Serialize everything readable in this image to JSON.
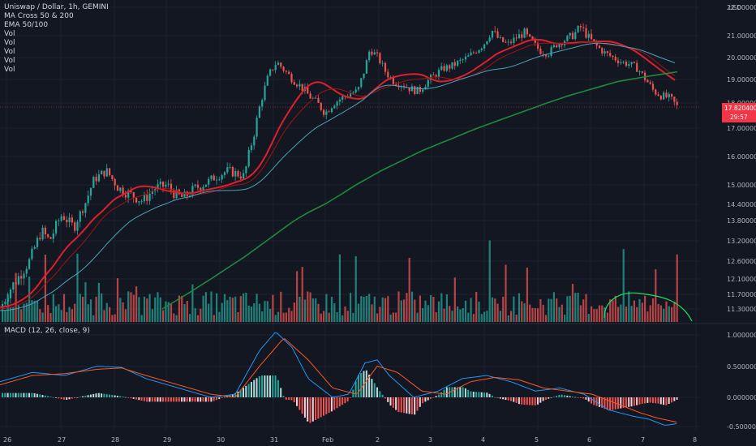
{
  "header": {
    "title": "Uniswap / Dollar, 1h, GEMINI",
    "indicators": [
      "MA Cross 50 & 200",
      "EMA 50/100",
      "Vol",
      "Vol",
      "Vol",
      "Vol",
      "Vol"
    ],
    "macd_label": "MACD (12, 26, close, 9)"
  },
  "price_badge": {
    "value": "17.820400",
    "countdown": "29:57",
    "color": "#f23645"
  },
  "colors": {
    "background": "#131722",
    "up": "#26a69a",
    "down": "#ef5350",
    "ma50": "#a31212",
    "ema50": "#e01f2c",
    "ema100": "#4aa3b8",
    "ma200": "#1e8a3c",
    "macd": "#2196f3",
    "signal": "#ff5722",
    "annotation": "#19e35a"
  },
  "chart_data": {
    "type": "candlestick",
    "symbol": "Uniswap / Dollar",
    "interval": "1h",
    "exchange": "GEMINI",
    "unit": "USD",
    "price_axis_ticks": [
      "22.000000",
      "21.000000",
      "20.000000",
      "19.000000",
      "18.000000",
      "17.000000",
      "16.000000",
      "15.000000",
      "14.400000",
      "13.800000",
      "13.200000",
      "12.600000",
      "12.100000",
      "11.700000",
      "11.300000"
    ],
    "x_axis_labels": [
      "26",
      "27",
      "28",
      "29",
      "30",
      "31",
      "Feb",
      "2",
      "3",
      "4",
      "5",
      "6",
      "7",
      "8"
    ],
    "price_anchors": [
      [
        0,
        11.35
      ],
      [
        10,
        11.8
      ],
      [
        20,
        12.1
      ],
      [
        35,
        12.6
      ],
      [
        50,
        13.5
      ],
      [
        60,
        13.2
      ],
      [
        75,
        14.0
      ],
      [
        90,
        13.6
      ],
      [
        105,
        14.5
      ],
      [
        115,
        15.2
      ],
      [
        130,
        15.5
      ],
      [
        145,
        14.9
      ],
      [
        160,
        14.7
      ],
      [
        175,
        14.5
      ],
      [
        190,
        14.9
      ],
      [
        205,
        15.0
      ],
      [
        215,
        14.7
      ],
      [
        225,
        14.6
      ],
      [
        240,
        14.9
      ],
      [
        255,
        15.1
      ],
      [
        265,
        15.3
      ],
      [
        280,
        15.5
      ],
      [
        290,
        15.4
      ],
      [
        300,
        15.3
      ],
      [
        305,
        16.0
      ],
      [
        312,
        16.8
      ],
      [
        320,
        18.0
      ],
      [
        330,
        19.2
      ],
      [
        340,
        19.8
      ],
      [
        350,
        19.4
      ],
      [
        360,
        19.0
      ],
      [
        370,
        18.7
      ],
      [
        380,
        18.3
      ],
      [
        390,
        18.0
      ],
      [
        400,
        17.6
      ],
      [
        410,
        18.0
      ],
      [
        420,
        18.2
      ],
      [
        430,
        18.4
      ],
      [
        440,
        18.5
      ],
      [
        448,
        19.4
      ],
      [
        455,
        20.4
      ],
      [
        465,
        20.0
      ],
      [
        475,
        19.3
      ],
      [
        485,
        18.9
      ],
      [
        495,
        18.8
      ],
      [
        505,
        18.6
      ],
      [
        515,
        18.5
      ],
      [
        525,
        18.9
      ],
      [
        535,
        19.2
      ],
      [
        545,
        19.5
      ],
      [
        555,
        19.6
      ],
      [
        565,
        19.8
      ],
      [
        575,
        20.0
      ],
      [
        585,
        20.3
      ],
      [
        595,
        20.6
      ],
      [
        605,
        21.2
      ],
      [
        615,
        20.8
      ],
      [
        625,
        20.6
      ],
      [
        635,
        20.9
      ],
      [
        645,
        21.1
      ],
      [
        655,
        20.7
      ],
      [
        665,
        20.3
      ],
      [
        675,
        20.2
      ],
      [
        685,
        20.6
      ],
      [
        695,
        20.8
      ],
      [
        705,
        21.0
      ],
      [
        715,
        21.3
      ],
      [
        725,
        20.9
      ],
      [
        735,
        20.5
      ],
      [
        745,
        20.2
      ],
      [
        755,
        20.0
      ],
      [
        765,
        19.8
      ],
      [
        775,
        19.7
      ],
      [
        785,
        19.5
      ],
      [
        795,
        19.0
      ],
      [
        805,
        18.5
      ],
      [
        815,
        18.3
      ],
      [
        825,
        18.2
      ],
      [
        835,
        17.8
      ]
    ],
    "volume_bars": 120,
    "macd_axis_ticks": [
      "1.000000",
      "0.500000",
      "0.000000",
      "-0.500000"
    ],
    "macd_line": [
      [
        0,
        0.25
      ],
      [
        40,
        0.4
      ],
      [
        80,
        0.35
      ],
      [
        120,
        0.5
      ],
      [
        150,
        0.48
      ],
      [
        180,
        0.3
      ],
      [
        220,
        0.15
      ],
      [
        260,
        0.0
      ],
      [
        290,
        0.05
      ],
      [
        320,
        0.75
      ],
      [
        340,
        1.05
      ],
      [
        360,
        0.8
      ],
      [
        380,
        0.3
      ],
      [
        410,
        0.0
      ],
      [
        430,
        0.05
      ],
      [
        450,
        0.55
      ],
      [
        465,
        0.6
      ],
      [
        480,
        0.35
      ],
      [
        510,
        0.0
      ],
      [
        540,
        0.1
      ],
      [
        570,
        0.3
      ],
      [
        600,
        0.35
      ],
      [
        630,
        0.25
      ],
      [
        660,
        0.1
      ],
      [
        690,
        0.15
      ],
      [
        720,
        0.05
      ],
      [
        750,
        -0.2
      ],
      [
        780,
        -0.3
      ],
      [
        800,
        -0.35
      ],
      [
        820,
        -0.45
      ],
      [
        835,
        -0.42
      ]
    ],
    "signal_line": [
      [
        0,
        0.2
      ],
      [
        40,
        0.35
      ],
      [
        80,
        0.38
      ],
      [
        120,
        0.45
      ],
      [
        150,
        0.47
      ],
      [
        180,
        0.35
      ],
      [
        220,
        0.2
      ],
      [
        260,
        0.05
      ],
      [
        290,
        0.0
      ],
      [
        320,
        0.5
      ],
      [
        350,
        0.95
      ],
      [
        380,
        0.6
      ],
      [
        410,
        0.15
      ],
      [
        440,
        0.05
      ],
      [
        465,
        0.5
      ],
      [
        490,
        0.4
      ],
      [
        520,
        0.1
      ],
      [
        550,
        0.05
      ],
      [
        580,
        0.25
      ],
      [
        610,
        0.32
      ],
      [
        640,
        0.28
      ],
      [
        670,
        0.15
      ],
      [
        700,
        0.1
      ],
      [
        730,
        0.05
      ],
      [
        760,
        -0.1
      ],
      [
        790,
        -0.25
      ],
      [
        810,
        -0.33
      ],
      [
        835,
        -0.4
      ]
    ],
    "legend_entries": [
      "MA Cross 50 & 200",
      "EMA 50/100",
      "Vol",
      "Vol",
      "Vol",
      "Vol",
      "Vol"
    ],
    "grid": true,
    "legend_position": "top-left"
  }
}
